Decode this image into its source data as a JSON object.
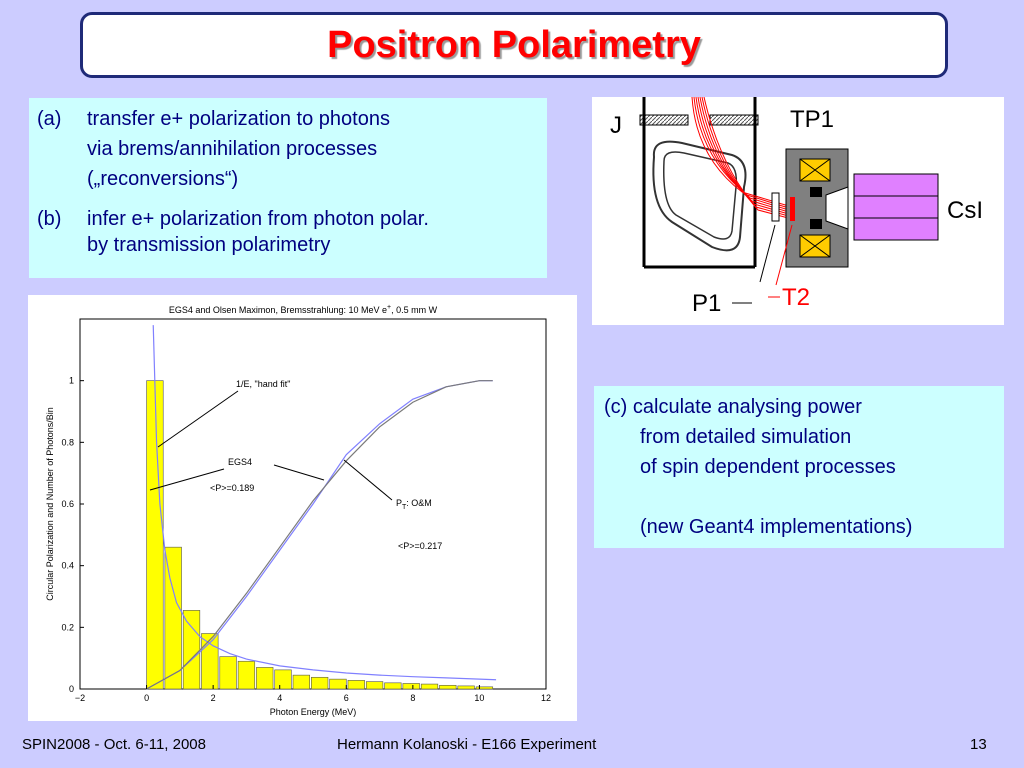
{
  "slide": {
    "title": "Positron Polarimetry",
    "box_ab": {
      "a_label": "(a)",
      "a_lines": [
        "transfer e+ polarization to photons",
        "via brems/annihilation processes",
        "(„reconversions“)"
      ],
      "b_label": "(b)",
      "b_lines": [
        "infer e+ polarization from photon polar.",
        "by transmission polarimetry"
      ]
    },
    "box_c": {
      "lines": [
        "(c) calculate analysing power",
        "from detailed simulation",
        "of spin dependent processes",
        "(new Geant4 implementations)"
      ]
    },
    "diagram": {
      "labels": {
        "j": "J",
        "tp1": "TP1",
        "csi": "CsI",
        "p1": "P1",
        "t2": "T2"
      },
      "colors": {
        "beam": "#ff0000",
        "magnet": "#808080",
        "coil": "#ffcc00",
        "calorimeter": "#e080ff"
      }
    },
    "footer": {
      "left": "SPIN2008 - Oct. 6-11, 2008",
      "center": "Hermann Kolanoski - E166 Experiment",
      "page": "13"
    }
  },
  "chart_data": {
    "type": "bar",
    "title": "EGS4 and Olsen Maximon, Bremsstrahlung: 10 MeV e",
    "title_sup": "+",
    "title_suffix": ", 0.5 mm W",
    "xlabel": "Photon Energy (MeV)",
    "ylabel": "Circular Polarization and Number of Photons/Bin",
    "xlim": [
      -2,
      12
    ],
    "ylim": [
      0,
      1.2
    ],
    "xticks": [
      "−2",
      "0",
      "2",
      "4",
      "6",
      "8",
      "10",
      "12"
    ],
    "yticks": [
      "0",
      "0.2",
      "0.4",
      "0.6",
      "0.8",
      "1"
    ],
    "bar_color": "#ffff00",
    "bars": {
      "x": [
        0,
        0.55,
        1.1,
        1.65,
        2.2,
        2.75,
        3.3,
        3.85,
        4.4,
        4.95,
        5.5,
        6.05,
        6.6,
        7.15,
        7.7,
        8.25,
        8.8,
        9.35,
        9.9
      ],
      "values": [
        1.0,
        0.46,
        0.255,
        0.18,
        0.105,
        0.09,
        0.07,
        0.062,
        0.045,
        0.038,
        0.032,
        0.028,
        0.024,
        0.02,
        0.018,
        0.016,
        0.012,
        0.01,
        0.007
      ]
    },
    "series": [
      {
        "name": "1/E, \"hand fit\"",
        "x": [
          0.2,
          0.3,
          0.4,
          0.55,
          0.7,
          0.9,
          1.2,
          1.6,
          2.0,
          2.5,
          3.0,
          4.0,
          5.0,
          6.0,
          7.0,
          8.0,
          9.0,
          10.5
        ],
        "y": [
          1.18,
          0.8,
          0.6,
          0.45,
          0.36,
          0.28,
          0.22,
          0.17,
          0.14,
          0.115,
          0.097,
          0.075,
          0.062,
          0.052,
          0.045,
          0.04,
          0.036,
          0.03
        ]
      },
      {
        "name": "EGS4",
        "x": [
          0,
          1,
          2,
          3,
          4,
          5,
          6,
          7,
          8,
          9,
          10,
          10.4
        ],
        "y": [
          0,
          0.06,
          0.16,
          0.3,
          0.45,
          0.6,
          0.76,
          0.86,
          0.94,
          0.98,
          1.0,
          1.0
        ]
      },
      {
        "name": "P_T: O&M",
        "x": [
          0,
          1,
          2,
          3,
          4,
          5,
          6,
          7,
          8,
          9,
          10,
          10.4
        ],
        "y": [
          0,
          0.06,
          0.17,
          0.31,
          0.46,
          0.61,
          0.74,
          0.85,
          0.93,
          0.98,
          1.0,
          1.0
        ]
      }
    ],
    "annotations": {
      "hand_fit": "1/E, \"hand fit\"",
      "egs4": "EGS4",
      "egs4_p": "<P>=0.189",
      "om_p": "P",
      "om_sub": "T",
      "om_suffix": ": O&M",
      "om_pval": "<P>=0.217"
    }
  }
}
